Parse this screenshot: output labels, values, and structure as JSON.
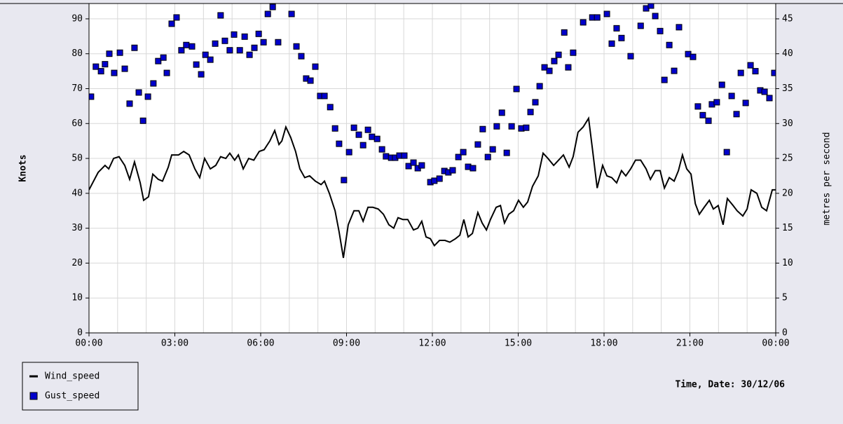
{
  "chart_data": {
    "type": "line",
    "ylabel": "Knots",
    "y2label": "metres per second",
    "xlabel": "Time, Date: 30/12/06",
    "xlim": [
      0,
      24
    ],
    "xticks": [
      {
        "value": 0,
        "label": "00:00"
      },
      {
        "value": 3,
        "label": "03:00"
      },
      {
        "value": 6,
        "label": "06:00"
      },
      {
        "value": 9,
        "label": "09:00"
      },
      {
        "value": 12,
        "label": "12:00"
      },
      {
        "value": 15,
        "label": "15:00"
      },
      {
        "value": 18,
        "label": "18:00"
      },
      {
        "value": 21,
        "label": "21:00"
      },
      {
        "value": 24,
        "label": "00:00"
      }
    ],
    "xminorticks": [
      1,
      2,
      4,
      5,
      7,
      8,
      10,
      11,
      13,
      14,
      16,
      17,
      19,
      20,
      22,
      23
    ],
    "ylim": [
      0,
      94.4
    ],
    "yticks": [
      0,
      10,
      20,
      30,
      40,
      50,
      60,
      70,
      80,
      90
    ],
    "y2lim": [
      0,
      47.2
    ],
    "y2ticks": [
      0,
      5,
      10,
      15,
      20,
      25,
      30,
      35,
      40,
      45
    ],
    "grid": true,
    "legend": "bottom-left",
    "series": [
      {
        "name": "Wind_speed",
        "kind": "line",
        "color": "#000000",
        "x": [
          0,
          0.32,
          0.56,
          0.69,
          0.86,
          1.05,
          1.25,
          1.42,
          1.59,
          1.79,
          1.91,
          2.08,
          2.23,
          2.42,
          2.57,
          2.77,
          2.89,
          3.13,
          3.31,
          3.5,
          3.7,
          3.87,
          4.04,
          4.24,
          4.43,
          4.6,
          4.78,
          4.92,
          5.09,
          5.22,
          5.39,
          5.58,
          5.76,
          5.95,
          6.12,
          6.32,
          6.49,
          6.64,
          6.74,
          6.88,
          7.05,
          7.22,
          7.37,
          7.54,
          7.71,
          7.91,
          8.11,
          8.23,
          8.4,
          8.6,
          8.74,
          8.89,
          9.06,
          9.26,
          9.43,
          9.58,
          9.75,
          9.92,
          10.11,
          10.29,
          10.48,
          10.65,
          10.8,
          10.97,
          11.14,
          11.34,
          11.49,
          11.63,
          11.78,
          11.93,
          12.07,
          12.25,
          12.44,
          12.61,
          12.81,
          12.96,
          13.1,
          13.25,
          13.4,
          13.59,
          13.74,
          13.89,
          14.03,
          14.23,
          14.38,
          14.52,
          14.67,
          14.84,
          15.01,
          15.18,
          15.33,
          15.5,
          15.7,
          15.87,
          16.04,
          16.24,
          16.41,
          16.58,
          16.78,
          16.92,
          17.09,
          17.27,
          17.46,
          17.59,
          17.76,
          17.95,
          18.1,
          18.27,
          18.44,
          18.61,
          18.76,
          18.93,
          19.1,
          19.28,
          19.47,
          19.62,
          19.79,
          19.96,
          20.11,
          20.28,
          20.45,
          20.6,
          20.74,
          20.89,
          21.04,
          21.19,
          21.33,
          21.5,
          21.68,
          21.82,
          21.99,
          22.16,
          22.31,
          22.51,
          22.65,
          22.85,
          23.0,
          23.14,
          23.34,
          23.51,
          23.68,
          23.88,
          24.0
        ],
        "values": [
          41,
          46,
          48,
          47,
          50,
          50.5,
          48,
          44,
          49,
          43,
          38,
          39,
          45.5,
          44,
          43.5,
          47.5,
          51,
          51,
          52,
          51,
          47,
          44.5,
          50,
          47,
          48,
          50.5,
          50,
          51.5,
          49.5,
          51,
          47,
          50,
          49.5,
          52,
          52.5,
          55,
          58,
          54,
          55,
          59,
          56,
          52,
          47,
          44.5,
          45,
          43.5,
          42.5,
          43.5,
          40,
          35,
          29,
          21.5,
          31,
          35,
          35,
          32,
          36,
          36,
          35.5,
          34,
          31,
          30,
          33,
          32.5,
          32.5,
          29.5,
          30,
          32,
          27.5,
          27,
          25,
          26.5,
          26.5,
          26,
          27,
          28,
          32.5,
          27.5,
          28.5,
          34.5,
          31.5,
          29.5,
          32.5,
          36,
          36.5,
          31.5,
          34,
          35,
          38,
          36,
          37.5,
          42,
          45,
          51.5,
          50,
          48,
          49.5,
          51,
          47.5,
          50.5,
          57.5,
          59,
          61.5,
          53,
          41.5,
          48,
          45,
          44.5,
          43,
          46.5,
          45,
          47,
          49.5,
          49.5,
          47,
          44,
          46.5,
          46.5,
          41.5,
          44.5,
          43.5,
          46.5,
          51,
          47,
          45.5,
          37,
          34,
          36,
          38,
          35.5,
          36.5,
          31,
          38.5,
          36.5,
          35,
          33.5,
          35.5,
          41,
          40,
          36,
          35,
          41,
          41
        ]
      },
      {
        "name": "Gust_speed",
        "kind": "scatter",
        "color": "#0000cc",
        "x": [
          0.07,
          0.24,
          0.42,
          0.56,
          0.71,
          0.88,
          1.08,
          1.25,
          1.42,
          1.59,
          1.74,
          1.89,
          2.06,
          2.25,
          2.42,
          2.6,
          2.72,
          2.89,
          3.06,
          3.23,
          3.4,
          3.6,
          3.75,
          3.92,
          4.07,
          4.24,
          4.41,
          4.6,
          4.75,
          4.92,
          5.07,
          5.27,
          5.44,
          5.61,
          5.78,
          5.93,
          6.1,
          6.25,
          6.42,
          6.61,
          7.08,
          7.25,
          7.42,
          7.59,
          7.74,
          7.91,
          8.08,
          8.23,
          8.43,
          8.6,
          8.74,
          8.91,
          9.09,
          9.26,
          9.43,
          9.58,
          9.75,
          9.89,
          10.07,
          10.24,
          10.38,
          10.56,
          10.7,
          10.85,
          11.02,
          11.17,
          11.34,
          11.49,
          11.63,
          11.93,
          12.07,
          12.25,
          12.42,
          12.56,
          12.71,
          12.91,
          13.08,
          13.25,
          13.42,
          13.59,
          13.76,
          13.94,
          14.11,
          14.25,
          14.43,
          14.6,
          14.77,
          14.94,
          15.11,
          15.28,
          15.43,
          15.6,
          15.75,
          15.92,
          16.09,
          16.26,
          16.41,
          16.61,
          16.75,
          16.92,
          17.27,
          17.59,
          17.76,
          18.1,
          18.27,
          18.44,
          18.61,
          18.93,
          19.28,
          19.47,
          19.64,
          19.79,
          19.96,
          20.11,
          20.28,
          20.45,
          20.62,
          20.94,
          21.11,
          21.28,
          21.45,
          21.65,
          21.77,
          21.94,
          22.12,
          22.29,
          22.46,
          22.63,
          22.78,
          22.95,
          23.12,
          23.29,
          23.46,
          23.61,
          23.78,
          23.95
        ],
        "values": [
          67.7,
          76.3,
          75,
          77,
          80,
          74.5,
          80.3,
          75.7,
          65.7,
          81.7,
          68.9,
          60.8,
          67.7,
          71.5,
          77.9,
          78.9,
          74.5,
          88.6,
          90.4,
          81,
          82.5,
          82.1,
          76.9,
          74.1,
          79.7,
          78.3,
          82.9,
          91,
          83.7,
          81,
          85.5,
          81,
          84.9,
          79.7,
          81.7,
          85.7,
          83.3,
          91.4,
          93.4,
          83.3,
          91.4,
          82.1,
          79.3,
          72.9,
          72.3,
          76.3,
          67.9,
          67.9,
          64.7,
          58.6,
          54.2,
          43.8,
          51.8,
          58.8,
          56.8,
          53.8,
          58.2,
          56.2,
          55.6,
          52.6,
          50.6,
          50.2,
          50.2,
          50.8,
          50.8,
          47.8,
          48.8,
          47.2,
          48,
          43.2,
          43.6,
          44.2,
          46.4,
          46,
          46.6,
          50.4,
          51.8,
          47.6,
          47.2,
          54,
          58.4,
          50.4,
          52.6,
          59.2,
          63.1,
          51.6,
          59.2,
          69.9,
          58.6,
          58.8,
          63.3,
          66.1,
          70.7,
          76.1,
          75.1,
          77.9,
          79.7,
          86.1,
          76.1,
          80.3,
          89,
          90.4,
          90.4,
          91.4,
          82.9,
          87.3,
          84.5,
          79.3,
          88,
          93,
          93.8,
          90.8,
          86.5,
          72.5,
          82.5,
          75.1,
          87.6,
          79.9,
          79.1,
          64.9,
          62.4,
          60.8,
          65.5,
          66.1,
          71.1,
          51.8,
          67.9,
          62.7,
          74.5,
          65.9,
          76.7,
          75,
          69.5,
          69.1,
          67.3,
          74.5
        ]
      }
    ]
  }
}
